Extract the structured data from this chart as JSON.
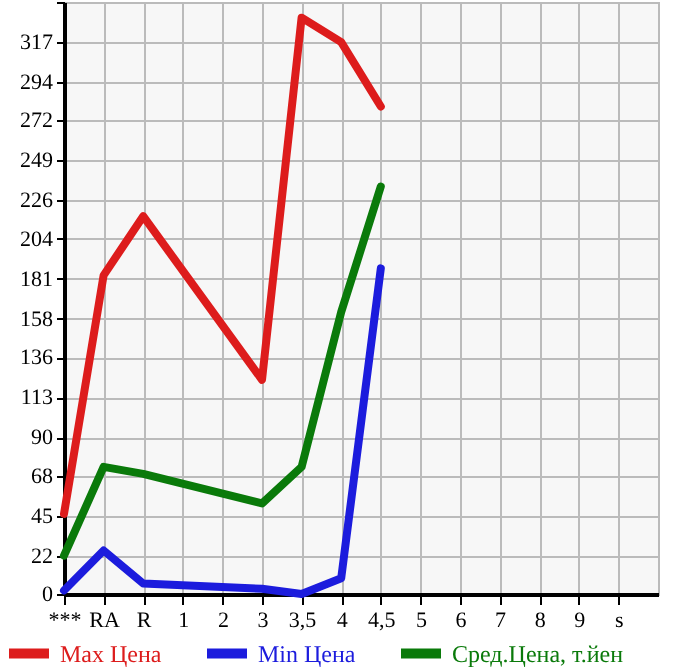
{
  "chart_data": {
    "type": "line",
    "categories": [
      "***",
      "RA",
      "R",
      "1",
      "2",
      "3",
      "3,5",
      "4",
      "4,5",
      "5",
      "6",
      "7",
      "8",
      "9",
      "s"
    ],
    "series": [
      {
        "name": "Max Цена",
        "color": "#dd1c1c",
        "values": [
          46,
          183,
          217,
          null,
          null,
          123,
          331,
          317,
          280,
          null,
          null,
          null,
          null,
          null,
          null
        ]
      },
      {
        "name": "Min Цена",
        "color": "#1c1cdd",
        "values": [
          2,
          25,
          6,
          null,
          null,
          3,
          0,
          9,
          187,
          null,
          null,
          null,
          null,
          null,
          null
        ]
      },
      {
        "name": "Сред.Цена, т.йен",
        "color": "#0a7a0a",
        "values": [
          22,
          73,
          69,
          null,
          null,
          52,
          73,
          162,
          234,
          null,
          null,
          null,
          null,
          null,
          null
        ]
      }
    ],
    "ylim": [
      0,
      340
    ],
    "yticks": [
      0,
      22,
      45,
      68,
      90,
      113,
      136,
      158,
      181,
      204,
      226,
      249,
      272,
      294,
      317,
      {
        "value": 340,
        "label": null
      }
    ],
    "grid": true,
    "legend": "bottom",
    "marker": "none",
    "line_style": "solid"
  }
}
